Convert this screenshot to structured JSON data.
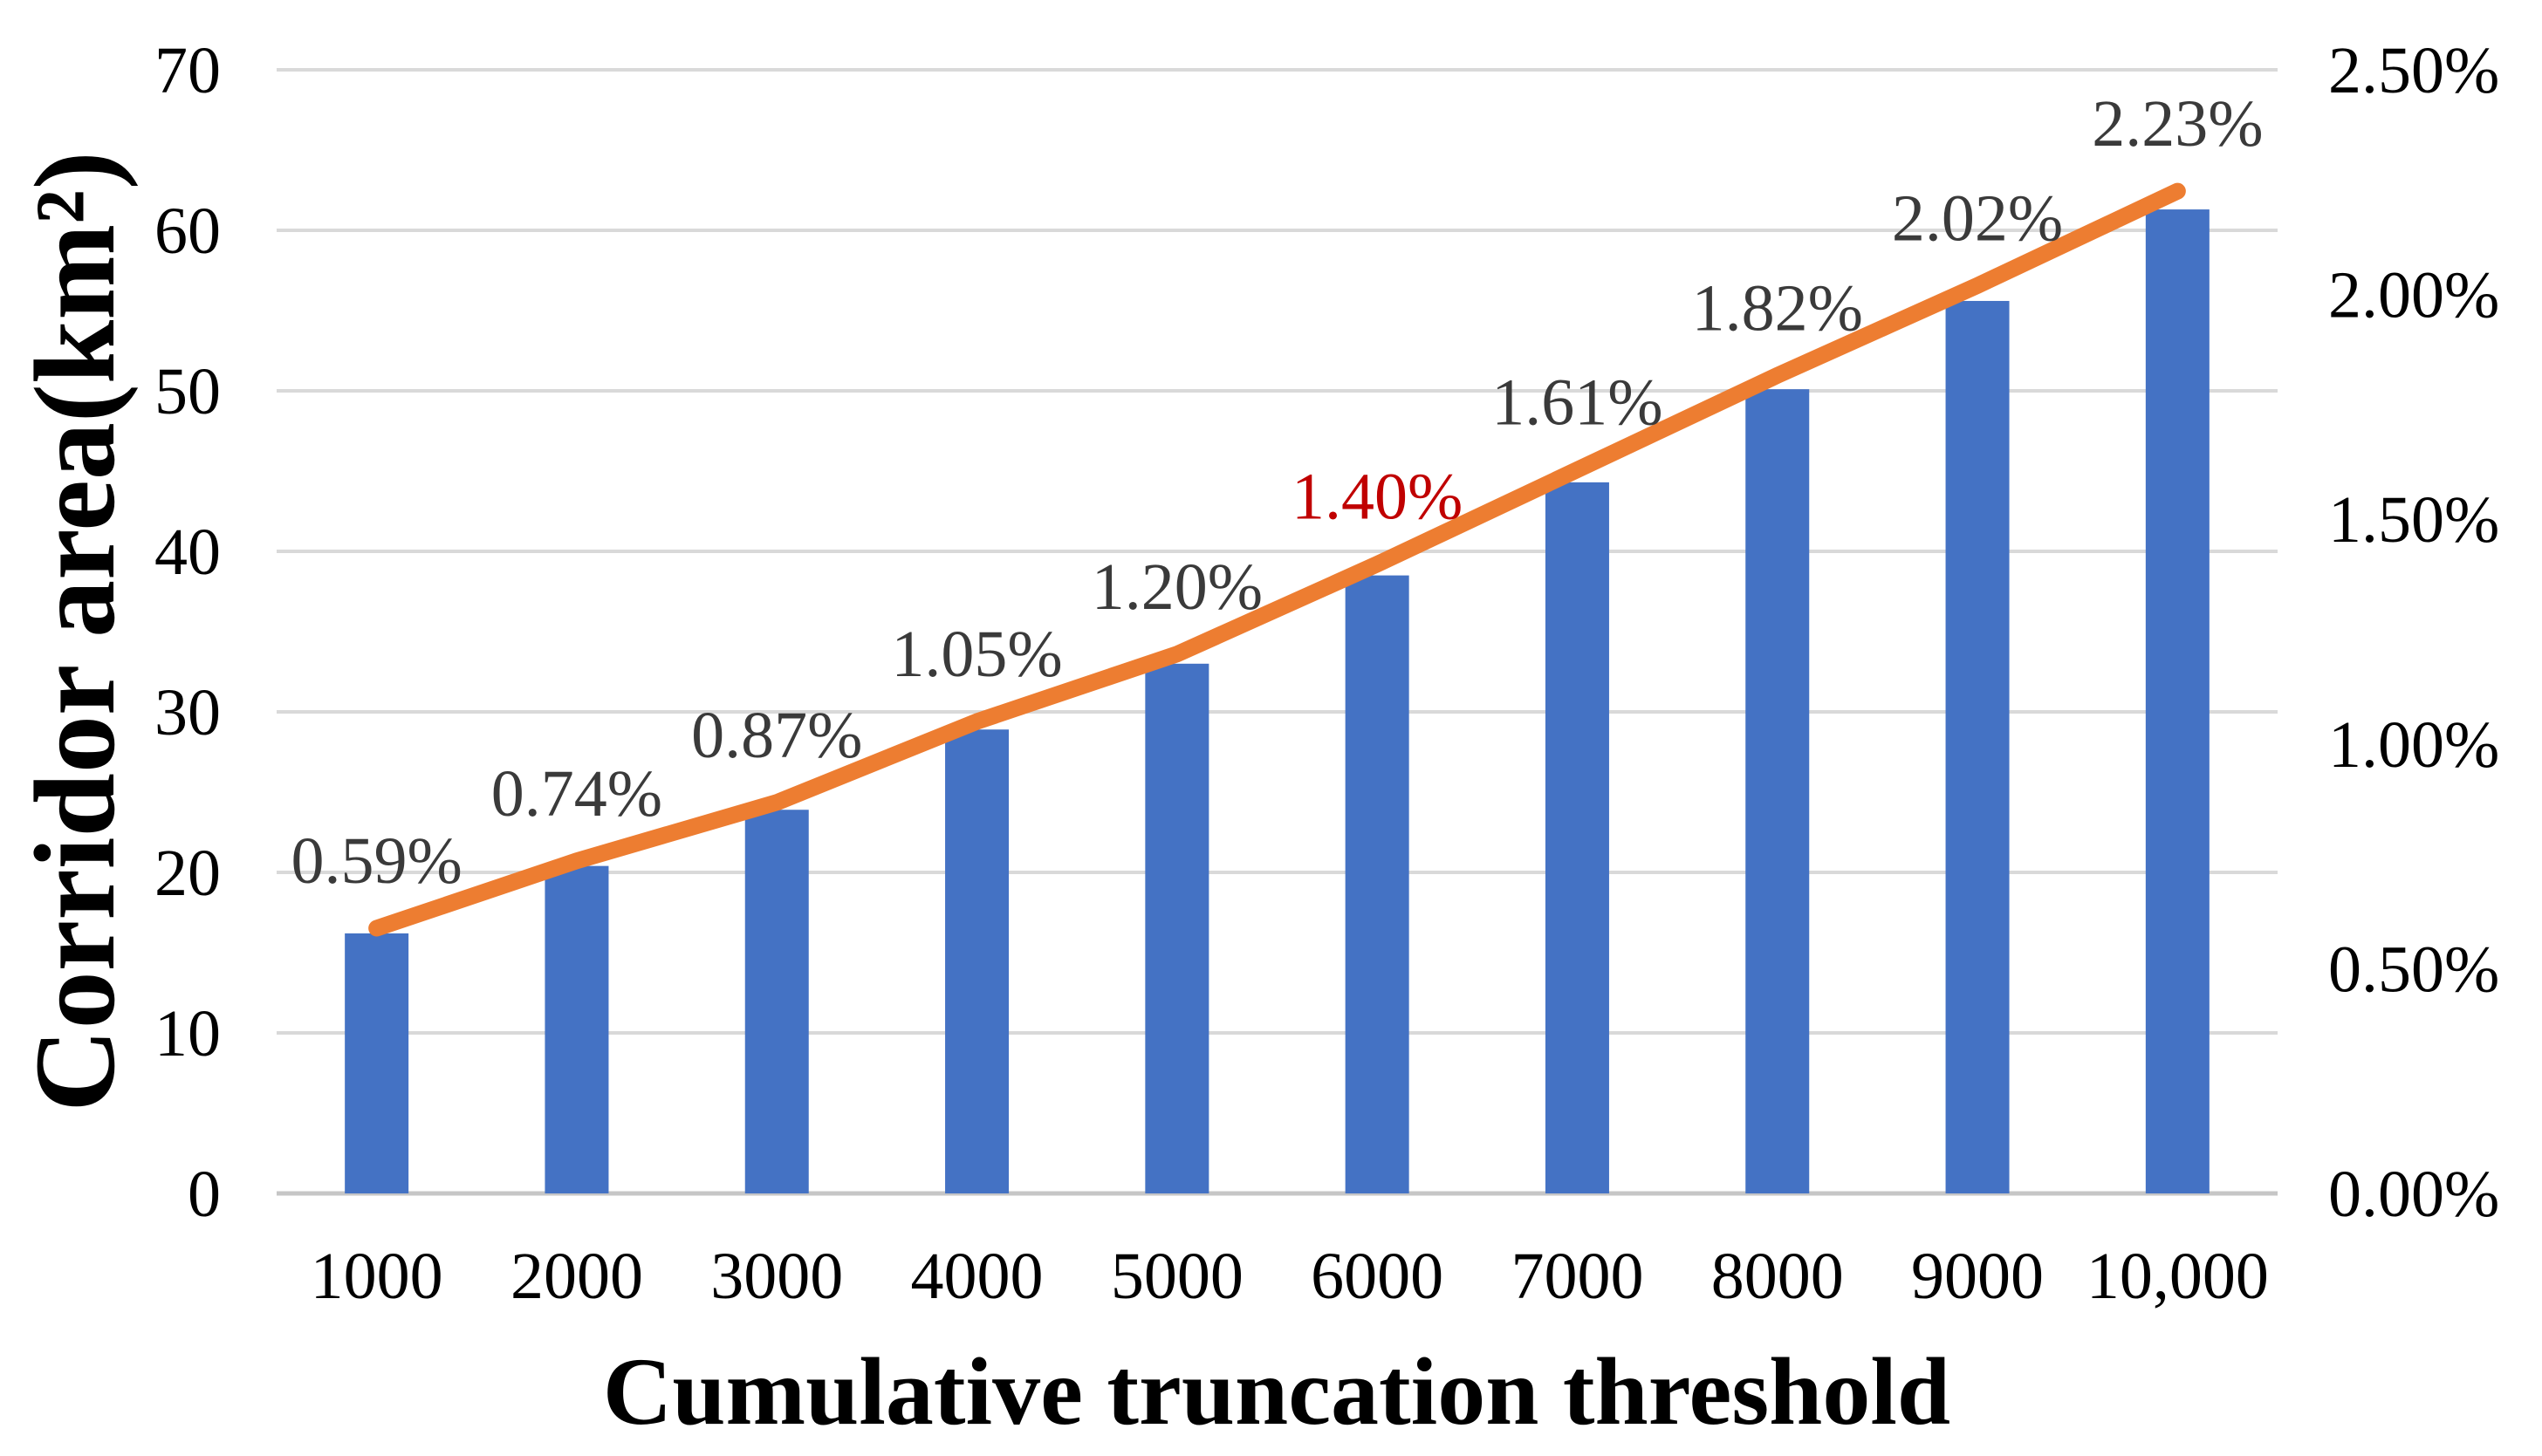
{
  "chart_data": {
    "type": "bar+line",
    "categories": [
      "1000",
      "2000",
      "3000",
      "4000",
      "5000",
      "6000",
      "7000",
      "8000",
      "9000",
      "10,000"
    ],
    "x_axis": {
      "title": "Cumulative truncation threshold"
    },
    "left_axis": {
      "title": "Corridor area(km²)",
      "range": [
        0,
        70
      ],
      "tick_labels": [
        "0",
        "10",
        "20",
        "30",
        "40",
        "50",
        "60",
        "70"
      ]
    },
    "right_axis": {
      "range": [
        0,
        2.5
      ],
      "tick_labels": [
        "0.00%",
        "0.50%",
        "1.00%",
        "1.50%",
        "2.00%",
        "2.50%"
      ]
    },
    "bar_series": {
      "axis": "left",
      "color": "#4472C4",
      "values": [
        16.2,
        20.4,
        23.9,
        28.9,
        33.0,
        38.5,
        44.3,
        50.1,
        55.6,
        61.3
      ]
    },
    "line_series": {
      "axis": "right",
      "color": "#ED7D31",
      "values": [
        0.59,
        0.74,
        0.87,
        1.05,
        1.2,
        1.4,
        1.61,
        1.82,
        2.02,
        2.23
      ],
      "point_labels": [
        "0.59%",
        "0.74%",
        "0.87%",
        "1.05%",
        "1.20%",
        "1.40%",
        "1.61%",
        "1.82%",
        "2.02%",
        "2.23%"
      ],
      "point_label_colors": [
        "#3A3A3A",
        "#3A3A3A",
        "#3A3A3A",
        "#3A3A3A",
        "#3A3A3A",
        "#C00000",
        "#3A3A3A",
        "#3A3A3A",
        "#3A3A3A",
        "#3A3A3A"
      ]
    },
    "grid": true,
    "legend": false,
    "colors": {
      "gridline": "#D9D9D9",
      "axis_line": "#C6C6C6",
      "tick_label": "#000000",
      "data_label": "#3A3A3A",
      "highlight_label": "#C00000",
      "background": "#FFFFFF"
    }
  }
}
